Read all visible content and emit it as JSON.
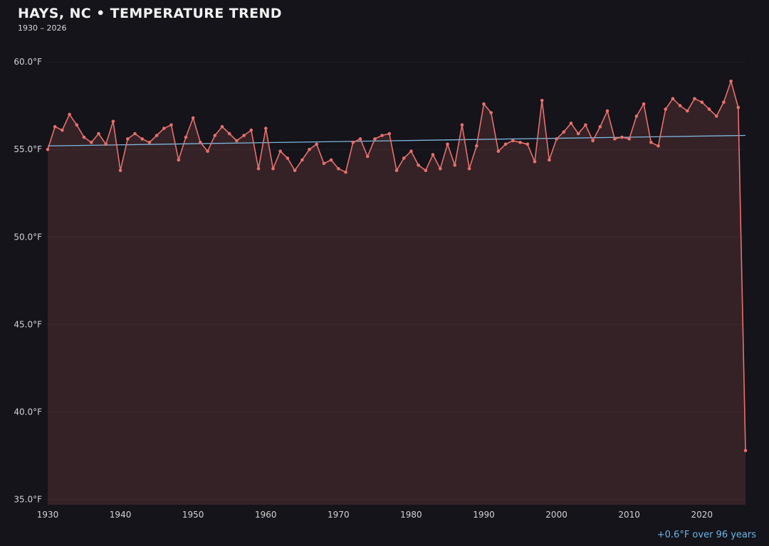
{
  "header": {
    "title": "HAYS, NC • TEMPERATURE TREND",
    "subtitle": "1930 – 2026"
  },
  "footer": {
    "trend_note": "+0.6°F over 96 years"
  },
  "colors": {
    "background": "#14141a",
    "line": "#e8706c",
    "area_fill": "#e8706c",
    "area_opacity": 0.16,
    "trend": "#7db8e0",
    "axis_text": "#d2d2d6",
    "grid": "rgba(255,255,255,0.05)",
    "title_text": "#f2f2f2",
    "note_text": "#6db3e8"
  },
  "chart_data": {
    "type": "line",
    "title": "HAYS, NC • TEMPERATURE TREND",
    "xlabel": "",
    "ylabel": "°F",
    "ylim": [
      34.7,
      61.1
    ],
    "grid": "faint-horizontal",
    "legend": false,
    "x": [
      1930,
      1931,
      1932,
      1933,
      1934,
      1935,
      1936,
      1937,
      1938,
      1939,
      1940,
      1941,
      1942,
      1943,
      1944,
      1945,
      1946,
      1947,
      1948,
      1949,
      1950,
      1951,
      1952,
      1953,
      1954,
      1955,
      1956,
      1957,
      1958,
      1959,
      1960,
      1961,
      1962,
      1963,
      1964,
      1965,
      1966,
      1967,
      1968,
      1969,
      1970,
      1971,
      1972,
      1973,
      1974,
      1975,
      1976,
      1977,
      1978,
      1979,
      1980,
      1981,
      1982,
      1983,
      1984,
      1985,
      1986,
      1987,
      1988,
      1989,
      1990,
      1991,
      1992,
      1993,
      1994,
      1995,
      1996,
      1997,
      1998,
      1999,
      2000,
      2001,
      2002,
      2003,
      2004,
      2005,
      2006,
      2007,
      2008,
      2009,
      2010,
      2011,
      2012,
      2013,
      2014,
      2015,
      2016,
      2017,
      2018,
      2019,
      2020,
      2021,
      2022,
      2023,
      2024,
      2025,
      2026
    ],
    "values": [
      55.0,
      56.3,
      56.1,
      57.0,
      56.4,
      55.7,
      55.4,
      55.9,
      55.3,
      56.6,
      53.8,
      55.6,
      55.9,
      55.6,
      55.4,
      55.8,
      56.2,
      56.4,
      54.4,
      55.7,
      56.8,
      55.4,
      54.9,
      55.8,
      56.3,
      55.9,
      55.5,
      55.8,
      56.1,
      53.9,
      56.2,
      53.9,
      54.9,
      54.5,
      53.8,
      54.4,
      55.0,
      55.3,
      54.2,
      54.4,
      53.9,
      53.7,
      55.4,
      55.6,
      54.6,
      55.6,
      55.8,
      55.9,
      53.8,
      54.5,
      54.9,
      54.1,
      53.8,
      54.7,
      53.9,
      55.3,
      54.1,
      56.4,
      53.9,
      55.2,
      57.6,
      57.1,
      54.9,
      55.3,
      55.5,
      55.4,
      55.3,
      54.3,
      57.8,
      54.4,
      55.6,
      56.0,
      56.5,
      55.9,
      56.4,
      55.5,
      56.3,
      57.2,
      55.6,
      55.7,
      55.6,
      56.9,
      57.6,
      55.4,
      55.2,
      57.3,
      57.9,
      57.5,
      57.2,
      57.9,
      57.7,
      57.3,
      56.9,
      57.7,
      58.9,
      57.4,
      37.8
    ],
    "yticks": [
      {
        "value": 60,
        "label": "60.0°F"
      },
      {
        "value": 55,
        "label": "55.0°F"
      },
      {
        "value": 50,
        "label": "50.0°F"
      },
      {
        "value": 45,
        "label": "45.0°F"
      },
      {
        "value": 40,
        "label": "40.0°F"
      },
      {
        "value": 35,
        "label": "35.0°F"
      }
    ],
    "xticks": [
      {
        "value": 1930,
        "label": "1930"
      },
      {
        "value": 1940,
        "label": "1940"
      },
      {
        "value": 1950,
        "label": "1950"
      },
      {
        "value": 1960,
        "label": "1960"
      },
      {
        "value": 1970,
        "label": "1970"
      },
      {
        "value": 1980,
        "label": "1980"
      },
      {
        "value": 1990,
        "label": "1990"
      },
      {
        "value": 2000,
        "label": "2000"
      },
      {
        "value": 2010,
        "label": "2010"
      },
      {
        "value": 2020,
        "label": "2020"
      }
    ],
    "trend": {
      "start_value": 55.2,
      "end_value": 55.8,
      "label": "+0.6°F over 96 years"
    }
  }
}
